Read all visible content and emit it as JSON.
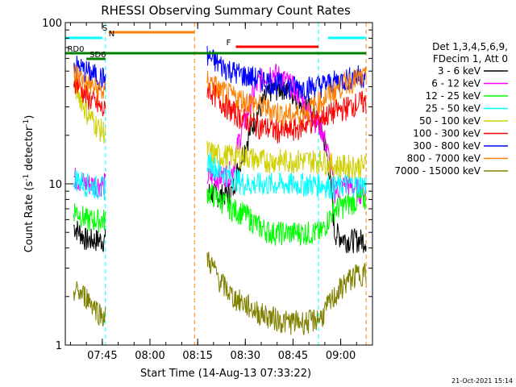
{
  "chart_data": {
    "type": "line",
    "title": "RHESSI Observing Summary Count Rates",
    "xlabel": "Start Time (14-Aug-13 07:33:22)",
    "ylabel_main": "Count Rate (s",
    "ylabel_sup": "-1",
    "ylabel_rest": " detector",
    "ylabel_end": ")",
    "yscale": "log",
    "ylim": [
      1,
      100
    ],
    "xlim": [
      "07:33:22",
      "09:10:00"
    ],
    "x_ticks": [
      "07:45",
      "08:00",
      "08:15",
      "08:30",
      "08:45",
      "09:00"
    ],
    "y_ticks": [
      "1",
      "10",
      "100"
    ],
    "legend": {
      "header_line1": "Det 1,3,4,5,6,9,",
      "header_line2": "FDecim 1, Att 0",
      "placement": "right"
    },
    "flags": [
      {
        "label": "RD0",
        "color": "#008000"
      },
      {
        "label": "SD6",
        "color": "#008000"
      },
      {
        "label": "S",
        "color": "#ff8000"
      },
      {
        "label": "N",
        "color": "#00ffff"
      },
      {
        "label": "F",
        "color": "#ff0000"
      }
    ],
    "series": [
      {
        "name": "3 - 6 keV",
        "color": "#000000",
        "x": [
          "07:36",
          "07:40",
          "07:44",
          "07:46",
          "08:18",
          "08:22",
          "08:26",
          "08:30",
          "08:34",
          "08:38",
          "08:42",
          "08:46",
          "08:50",
          "08:54",
          "08:58",
          "09:02",
          "09:06"
        ],
        "y": [
          5.5,
          4.5,
          4.5,
          4.5,
          9,
          8.5,
          9,
          17,
          28,
          38,
          40,
          35,
          30,
          22,
          5,
          4.5,
          4.5
        ]
      },
      {
        "name": "6 - 12 keV",
        "color": "#ff00ff",
        "x": [
          "07:36",
          "07:40",
          "07:44",
          "07:46",
          "08:18",
          "08:22",
          "08:26",
          "08:30",
          "08:34",
          "08:38",
          "08:42",
          "08:46",
          "08:50",
          "08:54",
          "08:58",
          "09:02",
          "09:06"
        ],
        "y": [
          11,
          10,
          10,
          10,
          11,
          11,
          12,
          25,
          42,
          50,
          45,
          38,
          28,
          22,
          9,
          10,
          9
        ]
      },
      {
        "name": "12 - 25 keV",
        "color": "#00ff00",
        "x": [
          "07:36",
          "07:40",
          "07:44",
          "07:46",
          "08:18",
          "08:22",
          "08:26",
          "08:30",
          "08:34",
          "08:38",
          "08:42",
          "08:46",
          "08:50",
          "08:54",
          "08:58",
          "09:02",
          "09:06"
        ],
        "y": [
          7,
          6,
          6,
          6,
          9,
          8,
          7,
          6.5,
          5.5,
          5,
          5,
          5,
          5,
          5,
          7,
          7.5,
          8
        ]
      },
      {
        "name": "25 - 50 keV",
        "color": "#00ffff",
        "x": [
          "07:36",
          "07:40",
          "07:44",
          "07:46",
          "08:18",
          "08:22",
          "08:26",
          "08:30",
          "08:34",
          "08:38",
          "08:42",
          "08:46",
          "08:50",
          "08:54",
          "08:58",
          "09:02",
          "09:06"
        ],
        "y": [
          11,
          10,
          9.5,
          9.5,
          14,
          12,
          11,
          10,
          10,
          10,
          10,
          10,
          10,
          10,
          9.5,
          10,
          10
        ]
      },
      {
        "name": "50 - 100 keV",
        "color": "#d0d000",
        "x": [
          "07:36",
          "07:40",
          "07:44",
          "07:46",
          "08:18",
          "08:22",
          "08:26",
          "08:30",
          "08:34",
          "08:38",
          "08:42",
          "08:46",
          "08:50",
          "08:54",
          "08:58",
          "09:02",
          "09:06"
        ],
        "y": [
          42,
          28,
          22,
          21,
          16,
          15,
          15,
          15,
          14,
          14,
          14,
          14,
          14,
          14,
          13,
          13,
          13
        ]
      },
      {
        "name": "100 - 300 keV",
        "color": "#ff0000",
        "x": [
          "07:36",
          "07:40",
          "07:44",
          "07:46",
          "08:18",
          "08:22",
          "08:26",
          "08:30",
          "08:34",
          "08:38",
          "08:42",
          "08:46",
          "08:50",
          "08:54",
          "08:58",
          "09:02",
          "09:06"
        ],
        "y": [
          45,
          35,
          30,
          28,
          40,
          33,
          28,
          25,
          23,
          22,
          21,
          22,
          24,
          26,
          28,
          30,
          32
        ]
      },
      {
        "name": "300 - 800 keV",
        "color": "#0000ff",
        "x": [
          "07:36",
          "07:40",
          "07:44",
          "07:46",
          "08:18",
          "08:22",
          "08:26",
          "08:30",
          "08:34",
          "08:38",
          "08:42",
          "08:46",
          "08:50",
          "08:54",
          "08:58",
          "09:02",
          "09:06"
        ],
        "y": [
          55,
          50,
          46,
          45,
          62,
          55,
          50,
          47,
          45,
          43,
          41,
          40,
          40,
          41,
          43,
          45,
          47
        ]
      },
      {
        "name": "800 - 7000 keV",
        "color": "#ff8000",
        "x": [
          "07:36",
          "07:40",
          "07:44",
          "07:46",
          "08:18",
          "08:22",
          "08:26",
          "08:30",
          "08:34",
          "08:38",
          "08:42",
          "08:46",
          "08:50",
          "08:54",
          "08:58",
          "09:02",
          "09:06"
        ],
        "y": [
          50,
          42,
          38,
          37,
          45,
          38,
          35,
          33,
          31,
          29,
          27,
          27,
          29,
          33,
          38,
          43,
          45
        ]
      },
      {
        "name": "7000 - 15000 keV",
        "color": "#808000",
        "x": [
          "07:36",
          "07:40",
          "07:44",
          "07:46",
          "08:18",
          "08:22",
          "08:26",
          "08:30",
          "08:34",
          "08:38",
          "08:42",
          "08:46",
          "08:50",
          "08:54",
          "08:58",
          "09:02",
          "09:06"
        ],
        "y": [
          2.2,
          2,
          1.6,
          1.5,
          3.5,
          2.5,
          2,
          1.8,
          1.6,
          1.5,
          1.4,
          1.4,
          1.4,
          1.5,
          2,
          2.5,
          2.8
        ]
      }
    ]
  },
  "footer": {
    "timestamp": "21-Oct-2021 15:14"
  }
}
